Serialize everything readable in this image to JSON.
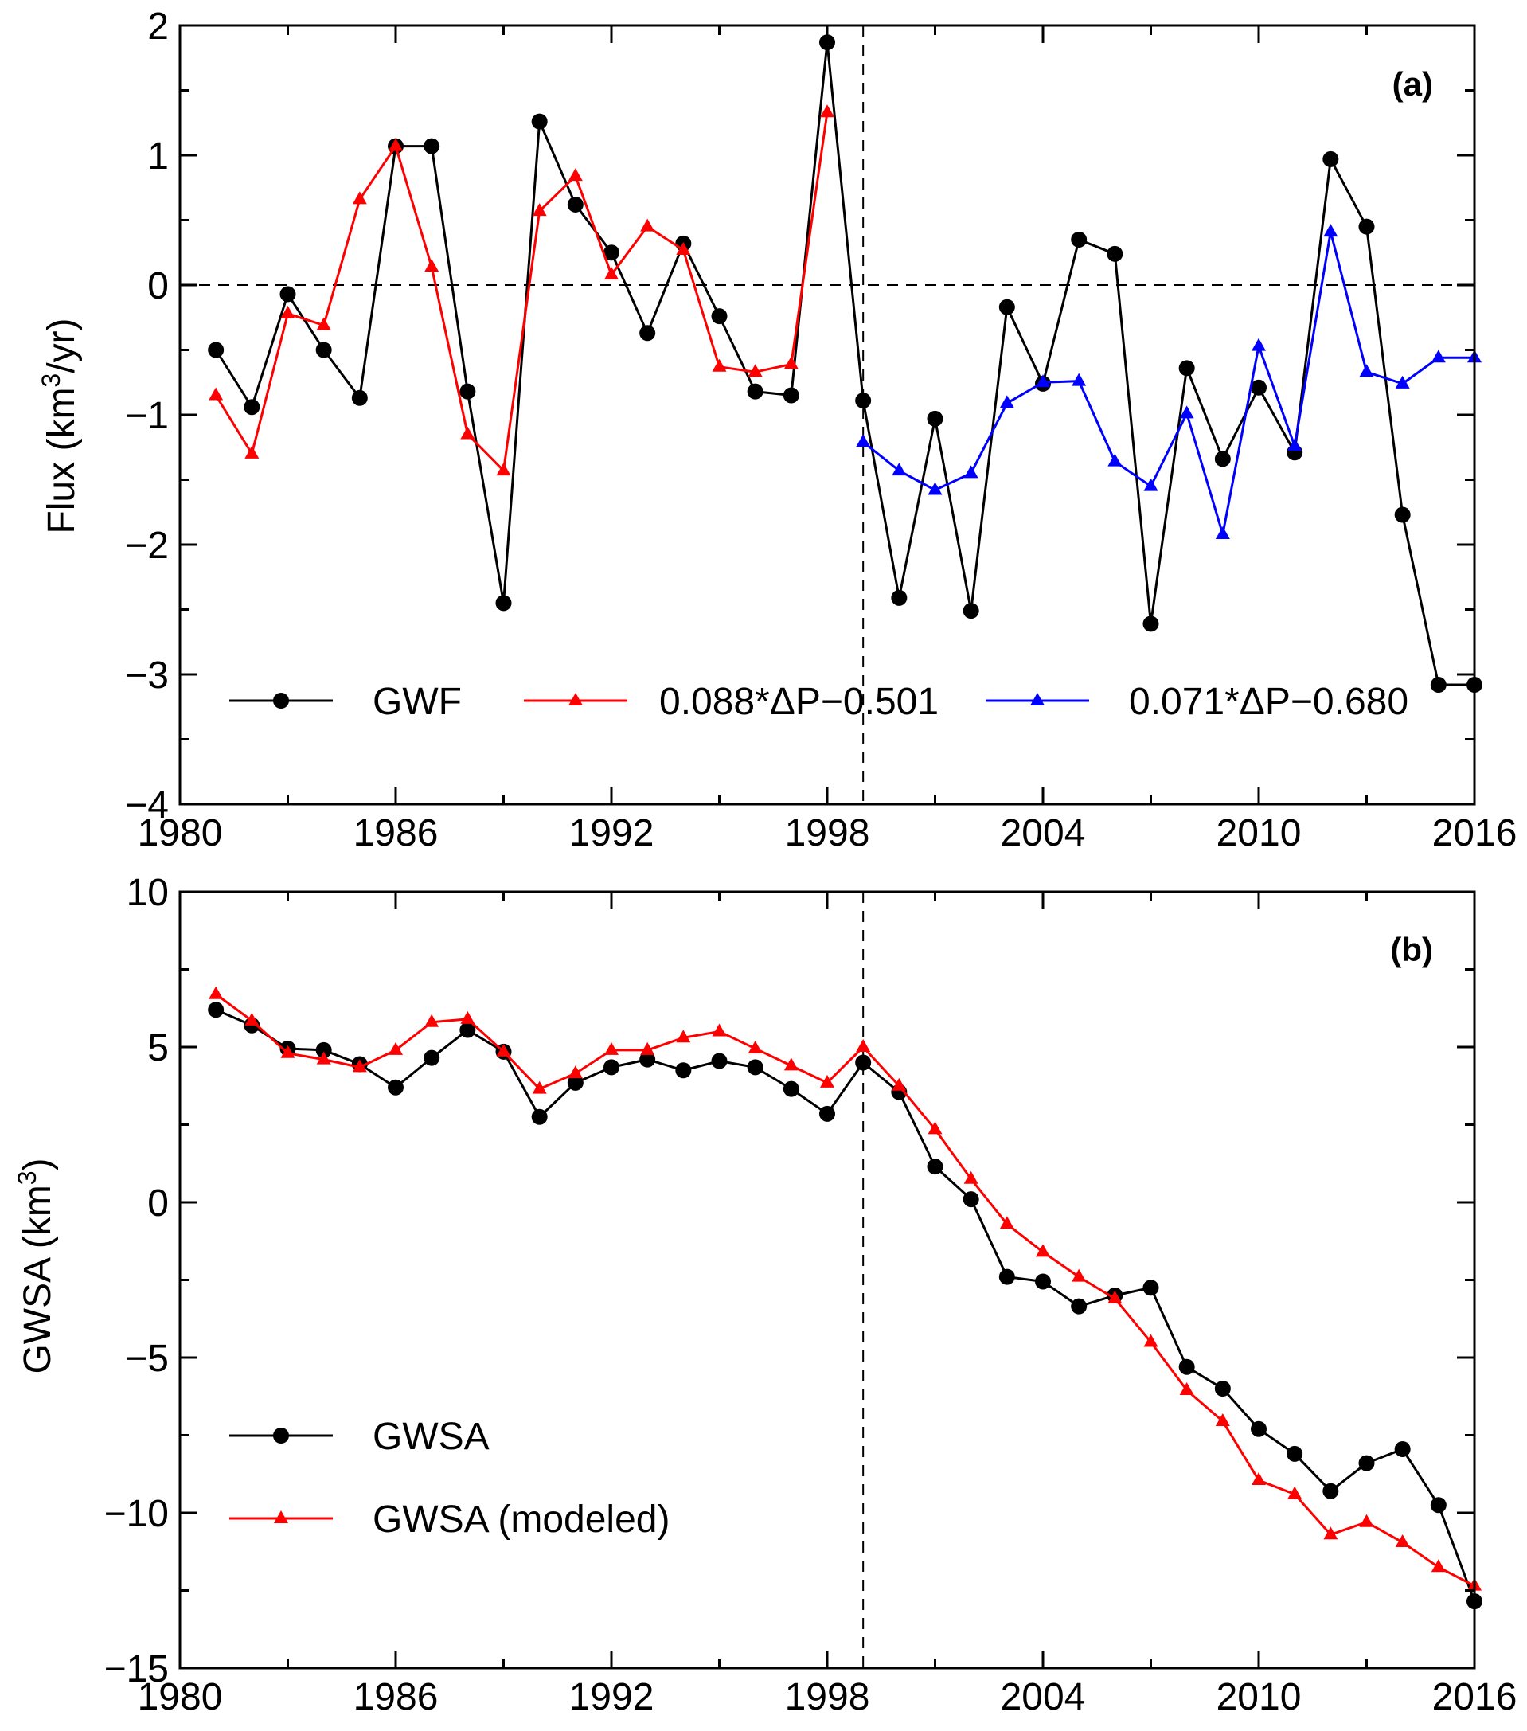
{
  "chart_data": [
    {
      "type": "line",
      "panel_label": "(a)",
      "ylabel_main": "Flux (km",
      "ylabel_sup": "3",
      "ylabel_tail": "/yr)",
      "xlim": [
        1980,
        2016
      ],
      "ylim": [
        -4,
        2
      ],
      "xticks": [
        1980,
        1986,
        1992,
        1998,
        2004,
        2010,
        2016
      ],
      "xtick_labels": [
        "1980",
        "1986",
        "1992",
        "1998",
        "2004",
        "2010",
        "2016"
      ],
      "yticks": [
        -4,
        -3,
        -2,
        -1,
        0,
        1,
        2
      ],
      "ytick_labels": [
        "−4",
        "−3",
        "−2",
        "−1",
        "0",
        "1",
        "2"
      ],
      "reference_lines": {
        "horizontal_y": 0,
        "vertical_x": 1999
      },
      "legend_position": "bottom",
      "series": [
        {
          "name": "GWF",
          "color": "#000000",
          "marker": "circle",
          "x": [
            1981,
            1982,
            1983,
            1984,
            1985,
            1986,
            1987,
            1988,
            1989,
            1990,
            1991,
            1992,
            1993,
            1994,
            1995,
            1996,
            1997,
            1998,
            1999,
            2000,
            2001,
            2002,
            2003,
            2004,
            2005,
            2006,
            2007,
            2008,
            2009,
            2010,
            2011,
            2012,
            2013,
            2014,
            2015,
            2016
          ],
          "y": [
            -0.5,
            -0.94,
            -0.07,
            -0.5,
            -0.87,
            1.07,
            1.07,
            -0.82,
            -2.45,
            1.26,
            0.62,
            0.25,
            -0.37,
            0.32,
            -0.24,
            -0.82,
            -0.85,
            1.87,
            -0.89,
            -2.41,
            -1.03,
            -2.51,
            -0.17,
            -0.76,
            0.35,
            0.24,
            -2.61,
            -0.64,
            -1.34,
            -0.79,
            -1.29,
            0.97,
            0.45,
            -1.77,
            -3.08,
            -3.08
          ]
        },
        {
          "name": "0.088*ΔP−0.501",
          "color": "#ff0000",
          "marker": "triangle",
          "x": [
            1981,
            1982,
            1983,
            1984,
            1985,
            1986,
            1987,
            1988,
            1989,
            1990,
            1991,
            1992,
            1993,
            1994,
            1995,
            1996,
            1997,
            1998
          ],
          "y": [
            -0.85,
            -1.3,
            -0.22,
            -0.31,
            0.66,
            1.07,
            0.14,
            -1.15,
            -1.43,
            0.57,
            0.84,
            0.08,
            0.45,
            0.27,
            -0.63,
            -0.67,
            -0.61,
            1.33
          ]
        },
        {
          "name": "0.071*ΔP−0.680",
          "color": "#0000ff",
          "marker": "triangle",
          "x": [
            1999,
            2000,
            2001,
            2002,
            2003,
            2004,
            2005,
            2006,
            2007,
            2008,
            2009,
            2010,
            2011,
            2012,
            2013,
            2014,
            2015,
            2016
          ],
          "y": [
            -1.21,
            -1.43,
            -1.58,
            -1.45,
            -0.91,
            -0.75,
            -0.74,
            -1.36,
            -1.55,
            -0.99,
            -1.92,
            -0.47,
            -1.24,
            0.41,
            -0.67,
            -0.76,
            -0.56,
            -0.56
          ]
        }
      ]
    },
    {
      "type": "line",
      "panel_label": "(b)",
      "ylabel_main": "GWSA (km",
      "ylabel_sup": "3",
      "ylabel_tail": ")",
      "xlim": [
        1980,
        2016
      ],
      "ylim": [
        -15,
        10
      ],
      "xticks": [
        1980,
        1986,
        1992,
        1998,
        2004,
        2010,
        2016
      ],
      "xtick_labels": [
        "1980",
        "1986",
        "1992",
        "1998",
        "2004",
        "2010",
        "2016"
      ],
      "yticks": [
        -15,
        -10,
        -5,
        0,
        5,
        10
      ],
      "ytick_labels": [
        "−15",
        "−10",
        "−5",
        "0",
        "5",
        "10"
      ],
      "reference_lines": {
        "vertical_x": 1999
      },
      "legend_position": "bottom-left",
      "series": [
        {
          "name": "GWSA",
          "color": "#000000",
          "marker": "circle",
          "x": [
            1981,
            1982,
            1983,
            1984,
            1985,
            1986,
            1987,
            1988,
            1989,
            1990,
            1991,
            1992,
            1993,
            1994,
            1995,
            1996,
            1997,
            1998,
            1999,
            2000,
            2001,
            2002,
            2003,
            2004,
            2005,
            2006,
            2007,
            2008,
            2009,
            2010,
            2011,
            2012,
            2013,
            2014,
            2015,
            2016
          ],
          "y": [
            6.2,
            5.7,
            4.95,
            4.9,
            4.45,
            3.7,
            4.65,
            5.55,
            4.85,
            2.75,
            3.85,
            4.35,
            4.6,
            4.25,
            4.55,
            4.35,
            3.65,
            2.85,
            4.5,
            3.55,
            1.15,
            0.1,
            -2.4,
            -2.55,
            -3.35,
            -3.0,
            -2.75,
            -5.3,
            -6.0,
            -7.3,
            -8.1,
            -9.3,
            -8.4,
            -7.95,
            -9.75,
            -12.85
          ]
        },
        {
          "name": "GWSA (modeled)",
          "color": "#ff0000",
          "marker": "triangle",
          "x": [
            1981,
            1982,
            1983,
            1984,
            1985,
            1986,
            1987,
            1988,
            1989,
            1990,
            1991,
            1992,
            1993,
            1994,
            1995,
            1996,
            1997,
            1998,
            1999,
            2000,
            2001,
            2002,
            2003,
            2004,
            2005,
            2006,
            2007,
            2008,
            2009,
            2010,
            2011,
            2012,
            2013,
            2014,
            2015,
            2016
          ],
          "y": [
            6.7,
            5.85,
            4.8,
            4.6,
            4.35,
            4.9,
            5.8,
            5.9,
            4.85,
            3.65,
            4.15,
            4.9,
            4.9,
            5.3,
            5.5,
            4.95,
            4.4,
            3.85,
            5.0,
            3.75,
            2.35,
            0.75,
            -0.7,
            -1.6,
            -2.4,
            -3.1,
            -4.5,
            -6.05,
            -7.05,
            -8.95,
            -9.4,
            -10.7,
            -10.3,
            -10.95,
            -11.75,
            -12.35
          ]
        }
      ]
    }
  ]
}
